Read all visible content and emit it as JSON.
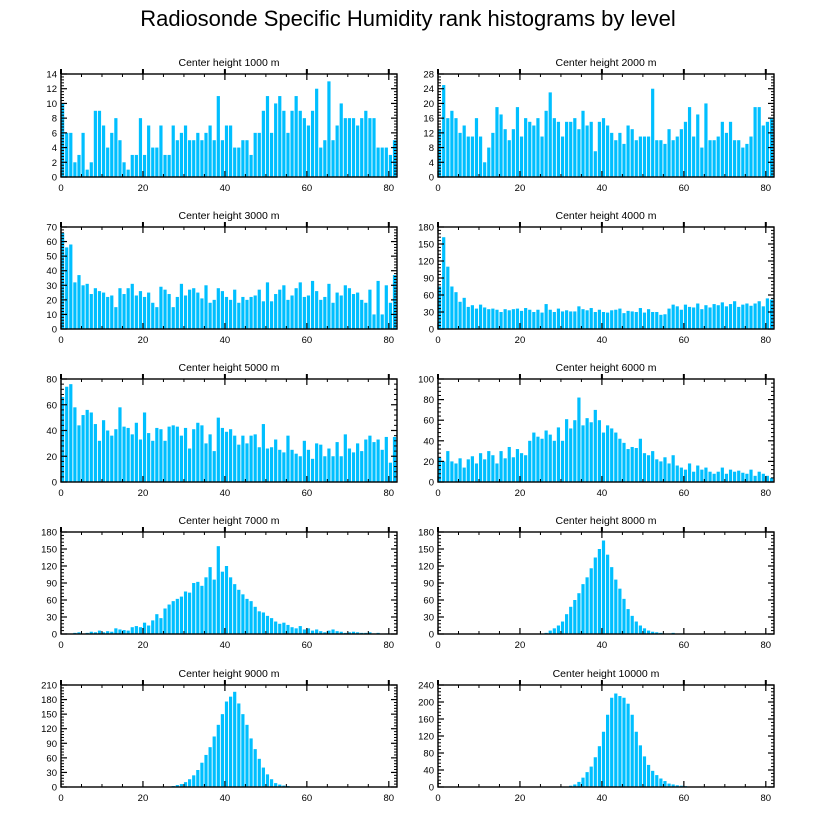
{
  "figure": {
    "title": "Radiosonde Specific Humidity rank histograms by level"
  },
  "chart_data": [
    {
      "type": "bar",
      "title": "Center height 1000 m",
      "x_ticks": [
        0,
        20,
        40,
        60,
        80
      ],
      "y_ticks": [
        0,
        2,
        4,
        6,
        8,
        10,
        12,
        14
      ],
      "xlim": [
        0,
        82
      ],
      "ylim": [
        0,
        14
      ],
      "bar_color": "#00BFFF",
      "values": [
        10,
        6,
        6,
        2,
        3,
        6,
        1,
        2,
        9,
        9,
        7,
        4,
        6,
        8,
        5,
        2,
        1,
        3,
        3,
        8,
        3,
        7,
        4,
        4,
        7,
        3,
        3,
        7,
        5,
        6,
        7,
        5,
        5,
        6,
        5,
        6,
        7,
        5,
        11,
        5,
        7,
        7,
        4,
        4,
        5,
        5,
        3,
        6,
        6,
        9,
        11,
        6,
        10,
        11,
        9,
        6,
        9,
        11,
        9,
        8,
        7,
        9,
        12,
        4,
        5,
        13,
        5,
        7,
        10,
        8,
        8,
        8,
        7,
        8,
        9,
        8,
        8,
        4,
        4,
        4,
        3,
        5
      ]
    },
    {
      "type": "bar",
      "title": "Center height 2000 m",
      "x_ticks": [
        0,
        20,
        40,
        60,
        80
      ],
      "y_ticks": [
        0,
        4,
        8,
        12,
        16,
        20,
        24,
        28
      ],
      "xlim": [
        0,
        82
      ],
      "ylim": [
        0,
        28
      ],
      "bar_color": "#00BFFF",
      "values": [
        13,
        25,
        16,
        18,
        16,
        12,
        14,
        11,
        11,
        16,
        11,
        4,
        8,
        12,
        19,
        17,
        13,
        10,
        13,
        19,
        11,
        16,
        15,
        14,
        16,
        11,
        18,
        23,
        16,
        15,
        11,
        15,
        15,
        16,
        13,
        18,
        14,
        15,
        7,
        15,
        16,
        14,
        12,
        10,
        12,
        9,
        14,
        13,
        10,
        11,
        11,
        11,
        24,
        10,
        10,
        9,
        13,
        10,
        11,
        13,
        15,
        19,
        11,
        17,
        8,
        20,
        10,
        10,
        11,
        15,
        12,
        15,
        10,
        10,
        8,
        9,
        11,
        19,
        19,
        14,
        15,
        16
      ]
    },
    {
      "type": "bar",
      "title": "Center height 3000 m",
      "x_ticks": [
        0,
        20,
        40,
        60,
        80
      ],
      "y_ticks": [
        0,
        10,
        20,
        30,
        40,
        50,
        60,
        70
      ],
      "xlim": [
        0,
        82
      ],
      "ylim": [
        0,
        70
      ],
      "bar_color": "#00BFFF",
      "values": [
        66,
        56,
        58,
        32,
        37,
        30,
        31,
        24,
        28,
        26,
        25,
        22,
        23,
        15,
        28,
        24,
        28,
        31,
        23,
        26,
        22,
        25,
        18,
        15,
        29,
        27,
        24,
        15,
        22,
        31,
        23,
        27,
        28,
        25,
        21,
        30,
        18,
        20,
        28,
        26,
        22,
        20,
        27,
        18,
        22,
        20,
        22,
        23,
        27,
        19,
        32,
        19,
        24,
        27,
        30,
        20,
        23,
        28,
        32,
        22,
        23,
        33,
        26,
        20,
        22,
        31,
        18,
        25,
        23,
        30,
        28,
        24,
        25,
        20,
        18,
        27,
        10,
        33,
        10,
        30,
        18,
        37
      ]
    },
    {
      "type": "bar",
      "title": "Center height 4000 m",
      "x_ticks": [
        0,
        20,
        40,
        60,
        80
      ],
      "y_ticks": [
        0,
        30,
        60,
        90,
        120,
        150,
        180
      ],
      "xlim": [
        0,
        82
      ],
      "ylim": [
        0,
        180
      ],
      "bar_color": "#00BFFF",
      "values": [
        75,
        162,
        110,
        75,
        65,
        48,
        55,
        39,
        42,
        36,
        43,
        38,
        35,
        36,
        34,
        30,
        35,
        33,
        35,
        36,
        32,
        37,
        34,
        30,
        34,
        29,
        44,
        34,
        30,
        36,
        31,
        33,
        31,
        31,
        40,
        35,
        33,
        37,
        30,
        34,
        30,
        29,
        33,
        34,
        36,
        28,
        32,
        31,
        30,
        37,
        29,
        35,
        30,
        30,
        25,
        26,
        36,
        43,
        40,
        34,
        43,
        39,
        38,
        45,
        35,
        42,
        38,
        44,
        42,
        47,
        40,
        44,
        49,
        39,
        43,
        45,
        41,
        45,
        49,
        40,
        54,
        52
      ]
    },
    {
      "type": "bar",
      "title": "Center height 5000 m",
      "x_ticks": [
        0,
        20,
        40,
        60,
        80
      ],
      "y_ticks": [
        0,
        20,
        40,
        60,
        80
      ],
      "xlim": [
        0,
        82
      ],
      "ylim": [
        0,
        80
      ],
      "bar_color": "#00BFFF",
      "values": [
        66,
        74,
        76,
        58,
        44,
        52,
        56,
        54,
        45,
        32,
        48,
        40,
        36,
        41,
        58,
        43,
        42,
        37,
        46,
        33,
        54,
        38,
        32,
        42,
        41,
        32,
        43,
        44,
        43,
        36,
        42,
        26,
        41,
        46,
        44,
        30,
        37,
        24,
        50,
        42,
        39,
        41,
        36,
        29,
        36,
        30,
        36,
        37,
        27,
        45,
        26,
        27,
        33,
        25,
        23,
        36,
        25,
        22,
        20,
        32,
        25,
        18,
        30,
        29,
        20,
        26,
        20,
        31,
        20,
        37,
        26,
        23,
        30,
        24,
        33,
        36,
        31,
        33,
        25,
        35,
        15,
        35
      ]
    },
    {
      "type": "bar",
      "title": "Center height 6000 m",
      "x_ticks": [
        0,
        20,
        40,
        60,
        80
      ],
      "y_ticks": [
        0,
        20,
        40,
        60,
        80,
        100
      ],
      "xlim": [
        0,
        82
      ],
      "ylim": [
        0,
        100
      ],
      "bar_color": "#00BFFF",
      "values": [
        24,
        20,
        30,
        20,
        18,
        23,
        14,
        22,
        25,
        18,
        28,
        22,
        30,
        26,
        18,
        30,
        23,
        34,
        24,
        32,
        28,
        26,
        40,
        48,
        44,
        42,
        50,
        46,
        40,
        53,
        40,
        61,
        52,
        60,
        82,
        55,
        62,
        58,
        70,
        60,
        48,
        55,
        52,
        48,
        42,
        38,
        32,
        34,
        33,
        42,
        28,
        26,
        30,
        22,
        20,
        24,
        18,
        26,
        16,
        14,
        12,
        18,
        10,
        16,
        12,
        14,
        10,
        8,
        10,
        14,
        8,
        12,
        10,
        11,
        9,
        8,
        12,
        6,
        10,
        8,
        6,
        4
      ]
    },
    {
      "type": "bar",
      "title": "Center height 7000 m",
      "x_ticks": [
        0,
        20,
        40,
        60,
        80
      ],
      "y_ticks": [
        0,
        30,
        60,
        90,
        120,
        150,
        180
      ],
      "xlim": [
        0,
        82
      ],
      "ylim": [
        0,
        180
      ],
      "bar_color": "#00BFFF",
      "values": [
        0,
        1,
        0,
        2,
        3,
        0,
        2,
        4,
        3,
        6,
        3,
        5,
        4,
        10,
        8,
        7,
        6,
        12,
        14,
        12,
        20,
        15,
        24,
        35,
        28,
        45,
        52,
        58,
        62,
        66,
        75,
        73,
        90,
        92,
        85,
        100,
        118,
        96,
        155,
        110,
        120,
        100,
        88,
        78,
        70,
        62,
        58,
        48,
        40,
        38,
        32,
        28,
        22,
        18,
        20,
        16,
        12,
        10,
        14,
        8,
        10,
        6,
        8,
        5,
        3,
        6,
        8,
        5,
        4,
        2,
        3,
        4,
        3,
        2,
        2,
        3,
        1,
        2,
        0,
        1,
        0,
        0
      ]
    },
    {
      "type": "bar",
      "title": "Center height 8000 m",
      "x_ticks": [
        0,
        20,
        40,
        60,
        80
      ],
      "y_ticks": [
        0,
        30,
        60,
        90,
        120,
        150,
        180
      ],
      "xlim": [
        0,
        82
      ],
      "ylim": [
        0,
        180
      ],
      "bar_color": "#00BFFF",
      "values": [
        0,
        0,
        0,
        0,
        0,
        0,
        0,
        0,
        0,
        0,
        0,
        0,
        0,
        0,
        0,
        0,
        0,
        0,
        0,
        0,
        0,
        0,
        0,
        0,
        0,
        0,
        2,
        6,
        10,
        15,
        22,
        35,
        48,
        60,
        72,
        88,
        100,
        116,
        135,
        150,
        165,
        140,
        118,
        96,
        80,
        62,
        44,
        32,
        22,
        15,
        10,
        6,
        4,
        3,
        2,
        1,
        1,
        2,
        0,
        1,
        0,
        0,
        0,
        0,
        0,
        0,
        0,
        0,
        0,
        0,
        0,
        0,
        0,
        0,
        0,
        0,
        0,
        0,
        0,
        0,
        0,
        0
      ]
    },
    {
      "type": "bar",
      "title": "Center height 9000 m",
      "x_ticks": [
        0,
        20,
        40,
        60,
        80
      ],
      "y_ticks": [
        0,
        30,
        60,
        90,
        120,
        150,
        180,
        210
      ],
      "xlim": [
        0,
        82
      ],
      "ylim": [
        0,
        210
      ],
      "bar_color": "#00BFFF",
      "values": [
        0,
        0,
        0,
        0,
        0,
        0,
        0,
        0,
        0,
        0,
        0,
        0,
        0,
        0,
        0,
        0,
        0,
        0,
        0,
        0,
        0,
        0,
        0,
        0,
        0,
        0,
        0,
        2,
        4,
        6,
        10,
        16,
        24,
        35,
        50,
        66,
        82,
        104,
        128,
        150,
        176,
        186,
        196,
        172,
        150,
        128,
        100,
        78,
        58,
        40,
        26,
        16,
        8,
        5,
        3,
        2,
        1,
        0,
        1,
        0,
        1,
        0,
        0,
        0,
        0,
        0,
        0,
        0,
        0,
        0,
        0,
        0,
        0,
        0,
        0,
        0,
        0,
        0,
        0,
        0,
        0,
        0
      ]
    },
    {
      "type": "bar",
      "title": "Center height 10000 m",
      "x_ticks": [
        0,
        20,
        40,
        60,
        80
      ],
      "y_ticks": [
        0,
        40,
        80,
        120,
        160,
        200,
        240
      ],
      "xlim": [
        0,
        82
      ],
      "ylim": [
        0,
        240
      ],
      "bar_color": "#00BFFF",
      "values": [
        0,
        0,
        0,
        0,
        0,
        0,
        0,
        0,
        0,
        0,
        0,
        0,
        0,
        0,
        0,
        0,
        0,
        0,
        0,
        0,
        0,
        0,
        0,
        0,
        0,
        0,
        0,
        0,
        0,
        0,
        0,
        1,
        3,
        6,
        12,
        22,
        35,
        48,
        70,
        96,
        130,
        170,
        210,
        220,
        214,
        210,
        196,
        170,
        130,
        98,
        72,
        52,
        38,
        28,
        20,
        14,
        8,
        6,
        4,
        3,
        2,
        1,
        1,
        0,
        0,
        0,
        0,
        0,
        0,
        0,
        0,
        0,
        0,
        0,
        0,
        0,
        0,
        0,
        0,
        0,
        0,
        0
      ]
    }
  ]
}
